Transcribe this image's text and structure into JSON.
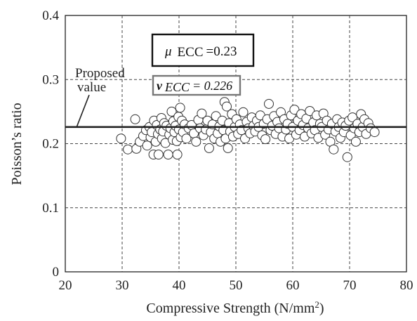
{
  "chart_data": {
    "type": "scatter",
    "xlabel": "Compressive Strength (N/mm",
    "xlabel_superscript": "2",
    "xlabel_close": ")",
    "ylabel": "Poisson’s ratio",
    "xlim": [
      20,
      80
    ],
    "ylim": [
      0,
      0.4
    ],
    "x_ticks": [
      "20",
      "30",
      "40",
      "50",
      "60",
      "70",
      "80"
    ],
    "y_ticks": [
      "0",
      "0.1",
      "0.2",
      "0.3",
      "0.4"
    ],
    "grid": true,
    "reference_line": {
      "y": 0.226,
      "label_line1": "Proposed",
      "label_line2": "value",
      "pointer_from": [
        22,
        0.226
      ],
      "pointer_to": [
        24.2,
        0.276
      ]
    },
    "mean_box": {
      "mu": "μ",
      "subscript": "ECC",
      "value_text": "=0.23"
    },
    "proposed_box": {
      "nu": "ν",
      "subscript": "ECC",
      "value_text": " = 0.226"
    },
    "points": [
      [
        29.8,
        0.208
      ],
      [
        31.0,
        0.191
      ],
      [
        32.3,
        0.238
      ],
      [
        32.5,
        0.192
      ],
      [
        33.1,
        0.203
      ],
      [
        33.7,
        0.212
      ],
      [
        34.2,
        0.221
      ],
      [
        34.4,
        0.197
      ],
      [
        34.8,
        0.226
      ],
      [
        35.0,
        0.21
      ],
      [
        35.2,
        0.218
      ],
      [
        35.5,
        0.183
      ],
      [
        35.6,
        0.236
      ],
      [
        35.9,
        0.203
      ],
      [
        36.1,
        0.229
      ],
      [
        36.3,
        0.215
      ],
      [
        36.4,
        0.183
      ],
      [
        36.7,
        0.222
      ],
      [
        36.9,
        0.24
      ],
      [
        37.0,
        0.208
      ],
      [
        37.2,
        0.219
      ],
      [
        37.4,
        0.232
      ],
      [
        37.6,
        0.201
      ],
      [
        37.8,
        0.228
      ],
      [
        38.1,
        0.183
      ],
      [
        38.3,
        0.214
      ],
      [
        38.5,
        0.224
      ],
      [
        38.7,
        0.25
      ],
      [
        38.9,
        0.206
      ],
      [
        39.0,
        0.235
      ],
      [
        39.2,
        0.218
      ],
      [
        39.4,
        0.228
      ],
      [
        39.6,
        0.204
      ],
      [
        39.7,
        0.183
      ],
      [
        39.9,
        0.242
      ],
      [
        40.0,
        0.222
      ],
      [
        40.2,
        0.256
      ],
      [
        40.3,
        0.21
      ],
      [
        40.5,
        0.236
      ],
      [
        40.7,
        0.218
      ],
      [
        41.0,
        0.23
      ],
      [
        41.3,
        0.208
      ],
      [
        41.7,
        0.224
      ],
      [
        42.2,
        0.229
      ],
      [
        42.6,
        0.216
      ],
      [
        43.0,
        0.203
      ],
      [
        43.4,
        0.237
      ],
      [
        43.7,
        0.224
      ],
      [
        44.0,
        0.247
      ],
      [
        44.3,
        0.213
      ],
      [
        44.7,
        0.222
      ],
      [
        45.0,
        0.236
      ],
      [
        45.3,
        0.193
      ],
      [
        45.6,
        0.218
      ],
      [
        45.9,
        0.23
      ],
      [
        46.2,
        0.208
      ],
      [
        46.5,
        0.243
      ],
      [
        46.8,
        0.216
      ],
      [
        47.1,
        0.227
      ],
      [
        47.3,
        0.203
      ],
      [
        47.6,
        0.236
      ],
      [
        47.8,
        0.221
      ],
      [
        48.0,
        0.265
      ],
      [
        48.2,
        0.208
      ],
      [
        48.4,
        0.258
      ],
      [
        48.6,
        0.193
      ],
      [
        48.8,
        0.232
      ],
      [
        49.0,
        0.219
      ],
      [
        49.3,
        0.246
      ],
      [
        49.5,
        0.211
      ],
      [
        49.8,
        0.226
      ],
      [
        50.1,
        0.238
      ],
      [
        50.4,
        0.215
      ],
      [
        50.7,
        0.23
      ],
      [
        51.0,
        0.221
      ],
      [
        51.3,
        0.249
      ],
      [
        51.6,
        0.208
      ],
      [
        51.9,
        0.234
      ],
      [
        52.2,
        0.224
      ],
      [
        52.5,
        0.216
      ],
      [
        52.8,
        0.241
      ],
      [
        53.1,
        0.228
      ],
      [
        53.4,
        0.219
      ],
      [
        53.7,
        0.236
      ],
      [
        54.0,
        0.226
      ],
      [
        54.3,
        0.244
      ],
      [
        54.6,
        0.213
      ],
      [
        54.9,
        0.231
      ],
      [
        55.2,
        0.207
      ],
      [
        55.5,
        0.238
      ],
      [
        55.8,
        0.262
      ],
      [
        56.1,
        0.221
      ],
      [
        56.4,
        0.228
      ],
      [
        56.7,
        0.243
      ],
      [
        57.0,
        0.215
      ],
      [
        57.3,
        0.234
      ],
      [
        57.6,
        0.224
      ],
      [
        57.9,
        0.249
      ],
      [
        58.2,
        0.211
      ],
      [
        58.5,
        0.238
      ],
      [
        58.8,
        0.222
      ],
      [
        59.1,
        0.231
      ],
      [
        59.4,
        0.208
      ],
      [
        59.7,
        0.244
      ],
      [
        60.0,
        0.226
      ],
      [
        60.3,
        0.253
      ],
      [
        60.6,
        0.214
      ],
      [
        60.9,
        0.236
      ],
      [
        61.2,
        0.221
      ],
      [
        61.5,
        0.246
      ],
      [
        61.8,
        0.229
      ],
      [
        62.1,
        0.211
      ],
      [
        62.4,
        0.239
      ],
      [
        62.7,
        0.224
      ],
      [
        63.0,
        0.251
      ],
      [
        63.3,
        0.216
      ],
      [
        63.6,
        0.233
      ],
      [
        63.9,
        0.221
      ],
      [
        64.2,
        0.244
      ],
      [
        64.5,
        0.209
      ],
      [
        64.8,
        0.231
      ],
      [
        65.1,
        0.226
      ],
      [
        65.4,
        0.247
      ],
      [
        65.7,
        0.214
      ],
      [
        66.0,
        0.236
      ],
      [
        66.3,
        0.222
      ],
      [
        66.6,
        0.203
      ],
      [
        66.9,
        0.231
      ],
      [
        67.2,
        0.191
      ],
      [
        67.5,
        0.219
      ],
      [
        67.8,
        0.238
      ],
      [
        68.1,
        0.226
      ],
      [
        68.4,
        0.209
      ],
      [
        68.7,
        0.233
      ],
      [
        69.0,
        0.218
      ],
      [
        69.3,
        0.228
      ],
      [
        69.6,
        0.179
      ],
      [
        69.9,
        0.236
      ],
      [
        70.2,
        0.213
      ],
      [
        70.5,
        0.241
      ],
      [
        70.8,
        0.224
      ],
      [
        71.1,
        0.203
      ],
      [
        71.4,
        0.231
      ],
      [
        71.7,
        0.218
      ],
      [
        72.0,
        0.246
      ],
      [
        72.3,
        0.226
      ],
      [
        72.6,
        0.238
      ],
      [
        72.9,
        0.215
      ],
      [
        73.3,
        0.232
      ],
      [
        73.7,
        0.224
      ],
      [
        74.4,
        0.218
      ]
    ]
  }
}
